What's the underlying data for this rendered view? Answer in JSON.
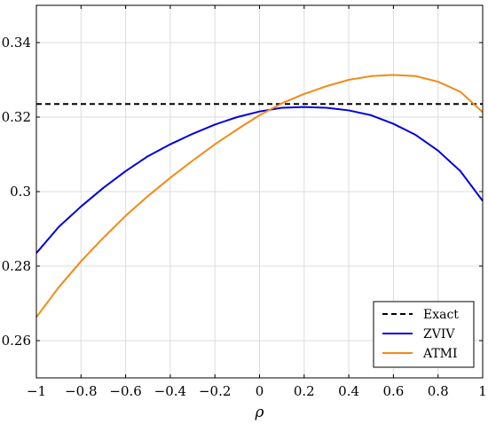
{
  "chart_data": {
    "type": "line",
    "title": "",
    "xlabel": "ρ",
    "ylabel": "",
    "xlim": [
      -1,
      1
    ],
    "ylim": [
      0.25,
      0.35
    ],
    "x_ticks": [
      -1,
      -0.8,
      -0.6,
      -0.4,
      -0.2,
      0,
      0.2,
      0.4,
      0.6,
      0.8,
      1
    ],
    "x_tick_labels": [
      "−1",
      "−0.8",
      "−0.6",
      "−0.4",
      "−0.2",
      "0",
      "0.2",
      "0.4",
      "0.6",
      "0.8",
      "1"
    ],
    "y_ticks": [
      0.26,
      0.28,
      0.3,
      0.32,
      0.34
    ],
    "y_tick_labels": [
      "0.26",
      "0.28",
      "0.3",
      "0.32",
      "0.34"
    ],
    "grid": true,
    "legend_position": "bottom-right",
    "x": [
      -1,
      -0.9,
      -0.8,
      -0.7,
      -0.6,
      -0.5,
      -0.4,
      -0.3,
      -0.2,
      -0.1,
      0,
      0.1,
      0.2,
      0.3,
      0.4,
      0.5,
      0.6,
      0.7,
      0.8,
      0.9,
      1
    ],
    "series": [
      {
        "name": "Exact",
        "color": "#000000",
        "dash": "dashed",
        "values": [
          0.3235,
          0.3235,
          0.3235,
          0.3235,
          0.3235,
          0.3235,
          0.3235,
          0.3235,
          0.3235,
          0.3235,
          0.3235,
          0.3235,
          0.3235,
          0.3235,
          0.3235,
          0.3235,
          0.3235,
          0.3235,
          0.3235,
          0.3235,
          0.3235
        ]
      },
      {
        "name": "ZVIV",
        "color": "#0000dd",
        "dash": "solid",
        "values": [
          0.2835,
          0.2905,
          0.296,
          0.301,
          0.3055,
          0.3095,
          0.3127,
          0.3155,
          0.318,
          0.32,
          0.3215,
          0.3225,
          0.3227,
          0.3225,
          0.3218,
          0.3205,
          0.3182,
          0.3152,
          0.311,
          0.3055,
          0.2975
        ]
      },
      {
        "name": "ATMI",
        "color": "#f28a16",
        "dash": "solid",
        "values": [
          0.2663,
          0.2743,
          0.2813,
          0.2876,
          0.2935,
          0.2988,
          0.3037,
          0.3083,
          0.3127,
          0.3167,
          0.3205,
          0.3237,
          0.3262,
          0.3283,
          0.33,
          0.331,
          0.3313,
          0.331,
          0.3295,
          0.3268,
          0.3213
        ]
      }
    ]
  }
}
